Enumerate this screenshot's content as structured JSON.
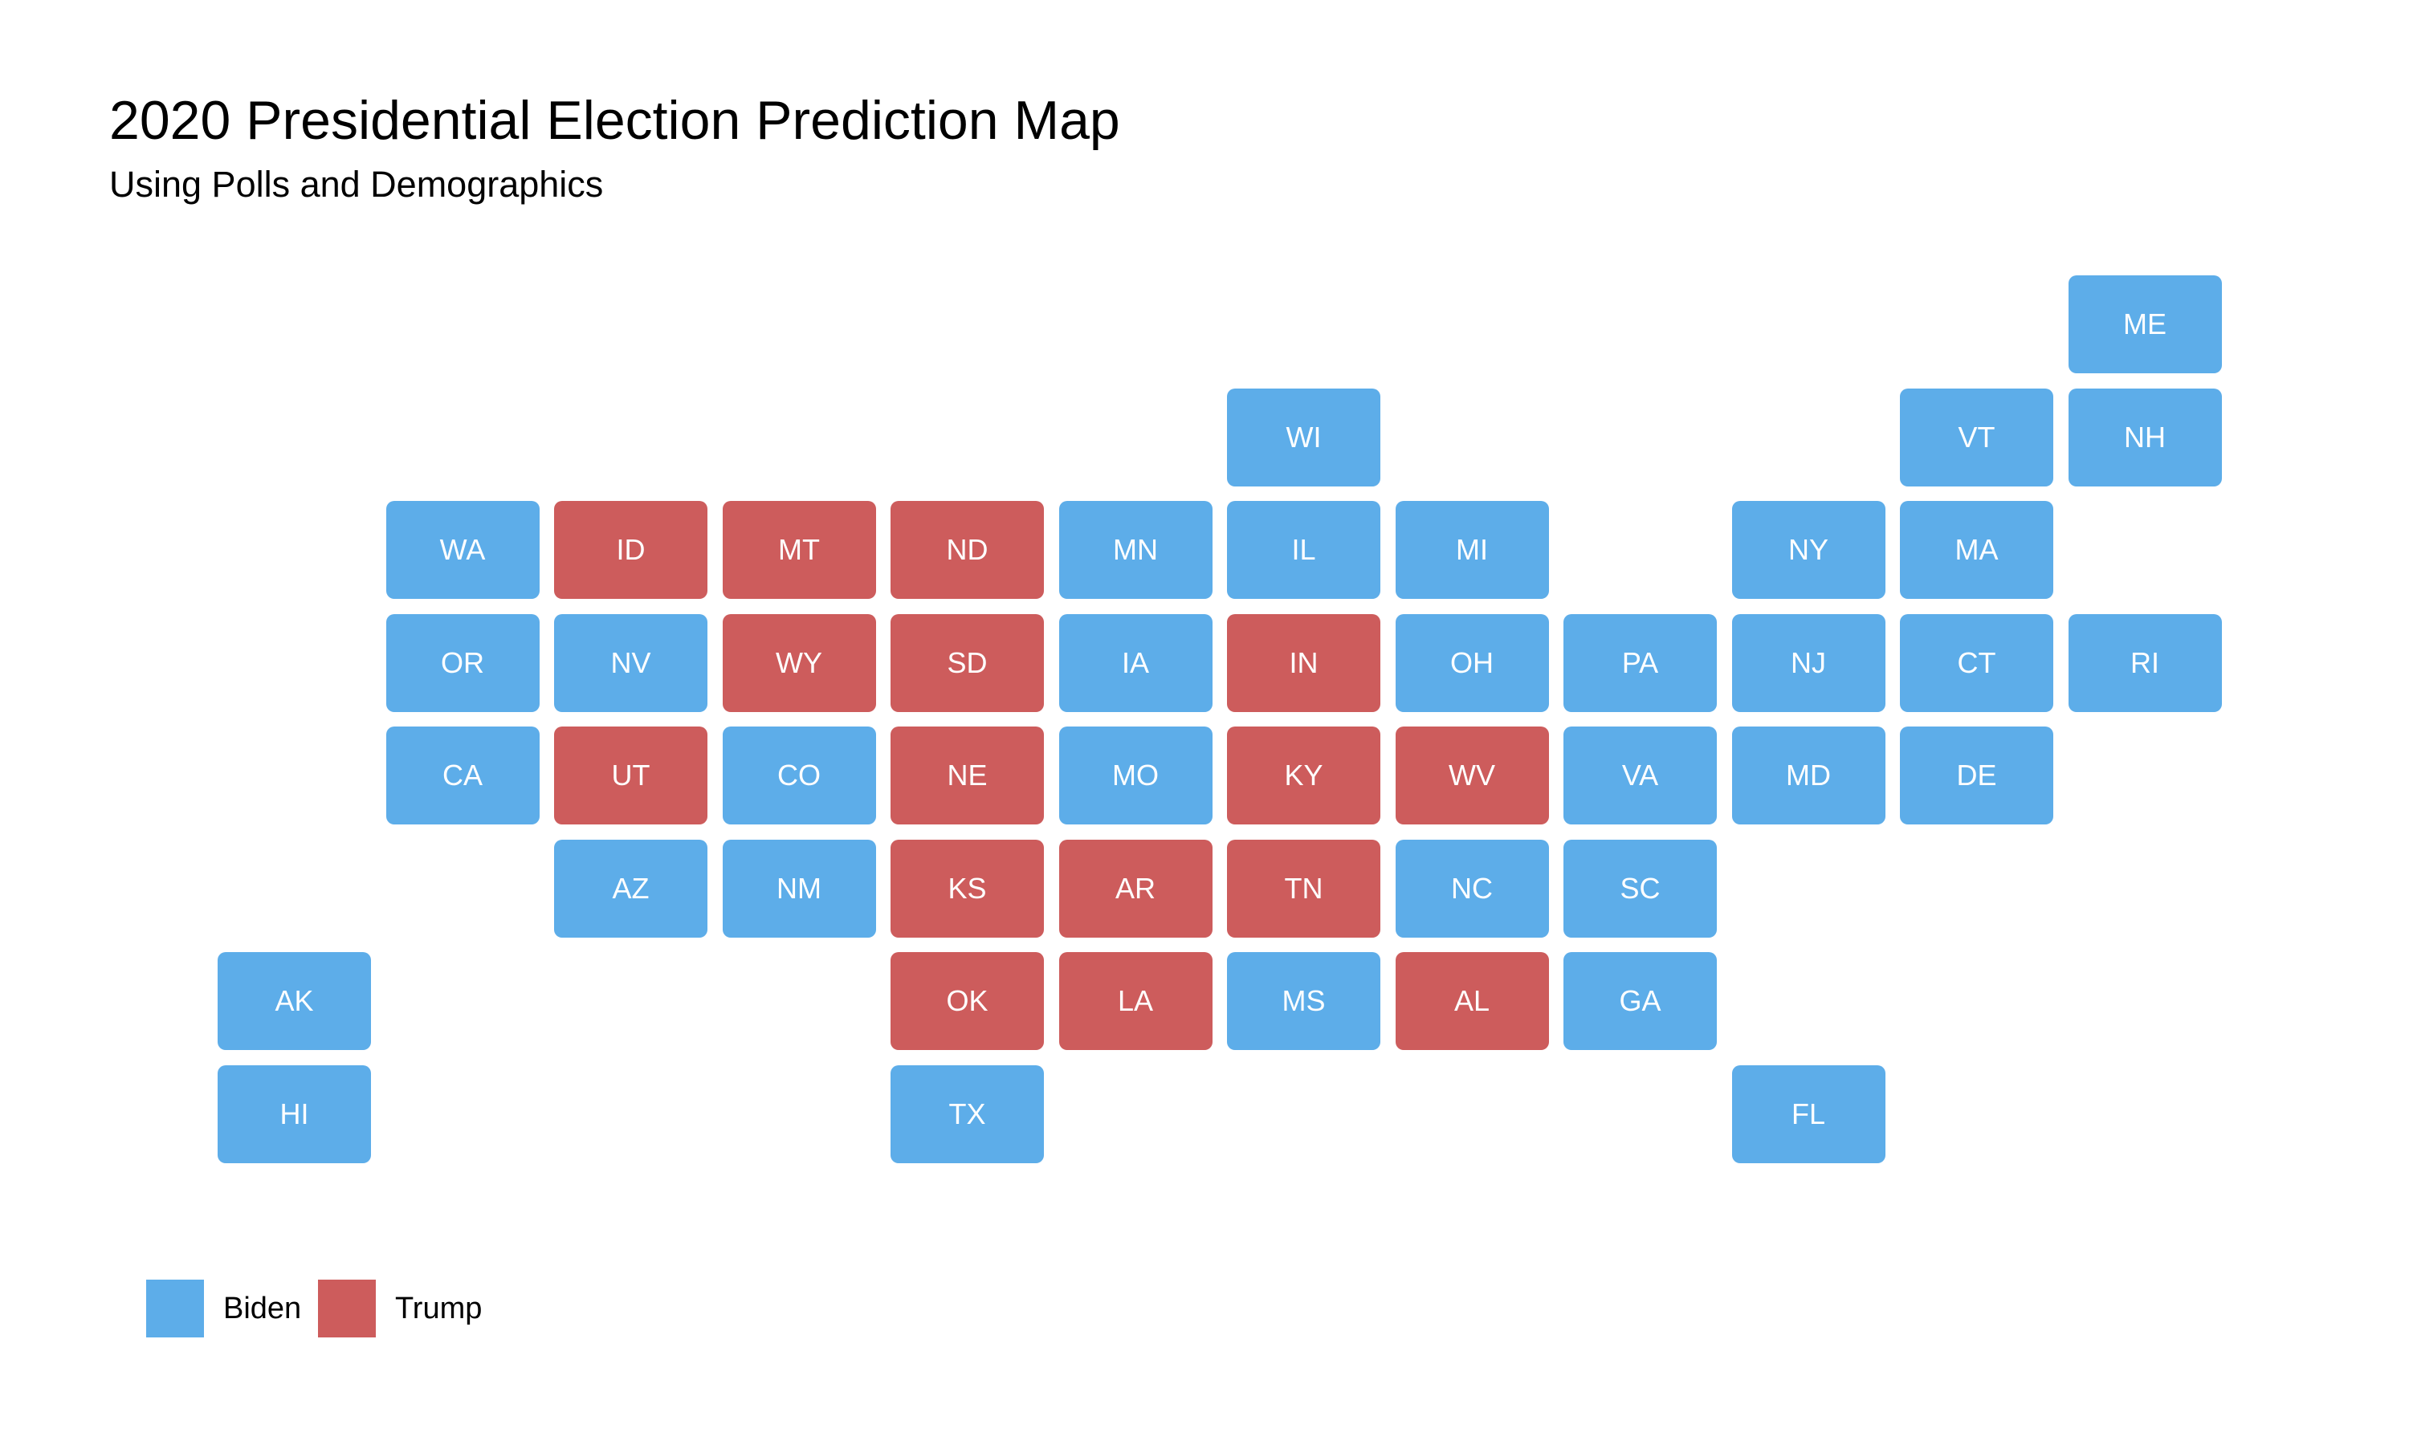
{
  "title": "2020 Presidential Election Prediction Map",
  "subtitle": "Using Polls and Demographics",
  "colors": {
    "Biden": "#5dade9",
    "Trump": "#cd5c5c"
  },
  "legend": [
    {
      "key": "Biden",
      "label": "Biden"
    },
    {
      "key": "Trump",
      "label": "Trump"
    }
  ],
  "states": [
    {
      "code": "ME",
      "winner": "Biden",
      "row": 0,
      "col": 11
    },
    {
      "code": "WI",
      "winner": "Biden",
      "row": 1,
      "col": 6
    },
    {
      "code": "VT",
      "winner": "Biden",
      "row": 1,
      "col": 10
    },
    {
      "code": "NH",
      "winner": "Biden",
      "row": 1,
      "col": 11
    },
    {
      "code": "WA",
      "winner": "Biden",
      "row": 2,
      "col": 1
    },
    {
      "code": "ID",
      "winner": "Trump",
      "row": 2,
      "col": 2
    },
    {
      "code": "MT",
      "winner": "Trump",
      "row": 2,
      "col": 3
    },
    {
      "code": "ND",
      "winner": "Trump",
      "row": 2,
      "col": 4
    },
    {
      "code": "MN",
      "winner": "Biden",
      "row": 2,
      "col": 5
    },
    {
      "code": "IL",
      "winner": "Biden",
      "row": 2,
      "col": 6
    },
    {
      "code": "MI",
      "winner": "Biden",
      "row": 2,
      "col": 7
    },
    {
      "code": "NY",
      "winner": "Biden",
      "row": 2,
      "col": 9
    },
    {
      "code": "MA",
      "winner": "Biden",
      "row": 2,
      "col": 10
    },
    {
      "code": "OR",
      "winner": "Biden",
      "row": 3,
      "col": 1
    },
    {
      "code": "NV",
      "winner": "Biden",
      "row": 3,
      "col": 2
    },
    {
      "code": "WY",
      "winner": "Trump",
      "row": 3,
      "col": 3
    },
    {
      "code": "SD",
      "winner": "Trump",
      "row": 3,
      "col": 4
    },
    {
      "code": "IA",
      "winner": "Biden",
      "row": 3,
      "col": 5
    },
    {
      "code": "IN",
      "winner": "Trump",
      "row": 3,
      "col": 6
    },
    {
      "code": "OH",
      "winner": "Biden",
      "row": 3,
      "col": 7
    },
    {
      "code": "PA",
      "winner": "Biden",
      "row": 3,
      "col": 8
    },
    {
      "code": "NJ",
      "winner": "Biden",
      "row": 3,
      "col": 9
    },
    {
      "code": "CT",
      "winner": "Biden",
      "row": 3,
      "col": 10
    },
    {
      "code": "RI",
      "winner": "Biden",
      "row": 3,
      "col": 11
    },
    {
      "code": "CA",
      "winner": "Biden",
      "row": 4,
      "col": 1
    },
    {
      "code": "UT",
      "winner": "Trump",
      "row": 4,
      "col": 2
    },
    {
      "code": "CO",
      "winner": "Biden",
      "row": 4,
      "col": 3
    },
    {
      "code": "NE",
      "winner": "Trump",
      "row": 4,
      "col": 4
    },
    {
      "code": "MO",
      "winner": "Biden",
      "row": 4,
      "col": 5
    },
    {
      "code": "KY",
      "winner": "Trump",
      "row": 4,
      "col": 6
    },
    {
      "code": "WV",
      "winner": "Trump",
      "row": 4,
      "col": 7
    },
    {
      "code": "VA",
      "winner": "Biden",
      "row": 4,
      "col": 8
    },
    {
      "code": "MD",
      "winner": "Biden",
      "row": 4,
      "col": 9
    },
    {
      "code": "DE",
      "winner": "Biden",
      "row": 4,
      "col": 10
    },
    {
      "code": "AZ",
      "winner": "Biden",
      "row": 5,
      "col": 2
    },
    {
      "code": "NM",
      "winner": "Biden",
      "row": 5,
      "col": 3
    },
    {
      "code": "KS",
      "winner": "Trump",
      "row": 5,
      "col": 4
    },
    {
      "code": "AR",
      "winner": "Trump",
      "row": 5,
      "col": 5
    },
    {
      "code": "TN",
      "winner": "Trump",
      "row": 5,
      "col": 6
    },
    {
      "code": "NC",
      "winner": "Biden",
      "row": 5,
      "col": 7
    },
    {
      "code": "SC",
      "winner": "Biden",
      "row": 5,
      "col": 8
    },
    {
      "code": "AK",
      "winner": "Biden",
      "row": 6,
      "col": 0
    },
    {
      "code": "OK",
      "winner": "Trump",
      "row": 6,
      "col": 4
    },
    {
      "code": "LA",
      "winner": "Trump",
      "row": 6,
      "col": 5
    },
    {
      "code": "MS",
      "winner": "Biden",
      "row": 6,
      "col": 6
    },
    {
      "code": "AL",
      "winner": "Trump",
      "row": 6,
      "col": 7
    },
    {
      "code": "GA",
      "winner": "Biden",
      "row": 6,
      "col": 8
    },
    {
      "code": "HI",
      "winner": "Biden",
      "row": 7,
      "col": 0
    },
    {
      "code": "TX",
      "winner": "Biden",
      "row": 7,
      "col": 4
    },
    {
      "code": "FL",
      "winner": "Biden",
      "row": 7,
      "col": 9
    }
  ]
}
